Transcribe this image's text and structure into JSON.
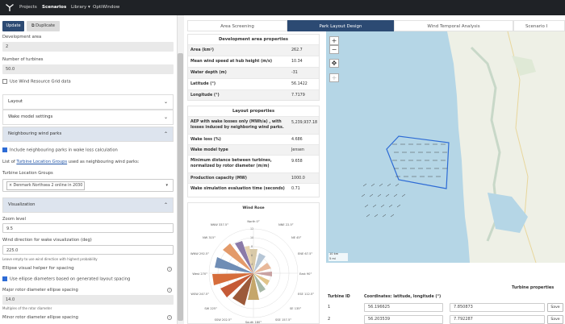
{
  "nav": {
    "projects": "Projects",
    "scenarios": "Scenarios",
    "library": "Library",
    "library_caret": "▾",
    "optiwindow": "OptiWindow"
  },
  "toolbar": {
    "update": "Update",
    "duplicate": "Duplicate"
  },
  "left": {
    "development_area_label": "Development area",
    "development_area_value": "2",
    "num_turbines_label": "Number of turbines",
    "num_turbines_value": "50.0",
    "use_wind_resource": "Use Wind Resource Grid data",
    "layout": "Layout",
    "wake_model_settings": "Wake model settings",
    "neighbouring_parks": "Neighbouring wind parks",
    "include_neighbouring": "Include neighbouring parks in wake loss calculation",
    "list_of": "List of",
    "turbine_location_groups_link": "Turbine Location Groups",
    "used_as": "used as neighbouring wind parks:",
    "tlg_label": "Turbine Location Groups",
    "tlg_chip": "× Denmark Northsea 2 online in 2030",
    "visualization": "Visualization",
    "zoom_label": "Zoom level",
    "zoom_value": "9.5",
    "wind_dir_label": "Wind direction for wake visualization (deg)",
    "wind_dir_value": "225.0",
    "wind_dir_help": "Leave empty to use wind direction with highest probability",
    "ellipse_helper": "Ellipse visual helper for spacing",
    "use_ellipse": "Use ellipse diameters based on generated layout spacing",
    "major_label": "Major rotor diameter ellipse spacing",
    "major_value": "14.0",
    "major_help": "Multiples of the rotor diameter",
    "minor_label": "Minor rotor diameter ellipse spacing"
  },
  "tabs": [
    "Area Screening",
    "Park Layout Design",
    "Wind Temporal Analysis",
    "Scenario I"
  ],
  "dev_props": {
    "title": "Development area properties",
    "rows": [
      {
        "k": "Area (km²)",
        "v": "262.7"
      },
      {
        "k": "Mean wind speed at hub height (m/s)",
        "v": "10.34"
      },
      {
        "k": "Water depth (m)",
        "v": "-31"
      },
      {
        "k": "Latitude (°)",
        "v": "56.1422"
      },
      {
        "k": "Longitude (°)",
        "v": "7.7179"
      }
    ]
  },
  "layout_props": {
    "title": "Layout properties",
    "rows": [
      {
        "k": "AEP with wake losses only (MWh/a) , with losses induced by neighboring wind parks.",
        "v": "5,239,937.18"
      },
      {
        "k": "Wake loss (%)",
        "v": "4.686"
      },
      {
        "k": "Wake model type",
        "v": "Jensen"
      },
      {
        "k": "Minimum distance between turbines, normalized by rotor diameter (m/m)",
        "v": "9.658"
      },
      {
        "k": "Production capacity (MW)",
        "v": "1000.0"
      },
      {
        "k": "Wake simulation evaluation time (seconds)",
        "v": "0.71"
      }
    ]
  },
  "wind_rose": {
    "title": "Wind Rose",
    "rings": [
      "12",
      "10",
      "8",
      "6",
      "4"
    ],
    "dirs": [
      "North 0°",
      "NNE 22.5°",
      "NE 45°",
      "ENE 67.5°",
      "East 90°",
      "ESE 112.5°",
      "SE 135°",
      "SSE 157.5°",
      "South 180°",
      "SSW 202.5°",
      "SW 225°",
      "WSW 247.5°",
      "West 270°",
      "WNW 292.5°",
      "NW 315°",
      "NNW 337.5°"
    ],
    "colors": {
      "primary": "#d66d3b",
      "alt": "#8aa0b8"
    }
  },
  "map": {
    "zoom_in": "+",
    "zoom_out": "−",
    "scale_km": "10 km",
    "scale_mi": "5 mi"
  },
  "turbine_props": {
    "title": "Turbine properties",
    "col_id": "Turbine ID",
    "col_coords": "Coordinates: latitude, longitude (°)",
    "rows": [
      {
        "id": "1",
        "lat": "56.196625",
        "lon": "7.850873",
        "save": "Save"
      },
      {
        "id": "2",
        "lat": "56.203539",
        "lon": "7.792287",
        "save": "Save"
      }
    ]
  },
  "colors": {
    "topbar": "#1f2226",
    "primary": "#2c4a73",
    "accordion_open": "#dde4ee",
    "sea": "#b5d6e6",
    "land": "#eef0e6",
    "park": "#2d6bd5"
  }
}
